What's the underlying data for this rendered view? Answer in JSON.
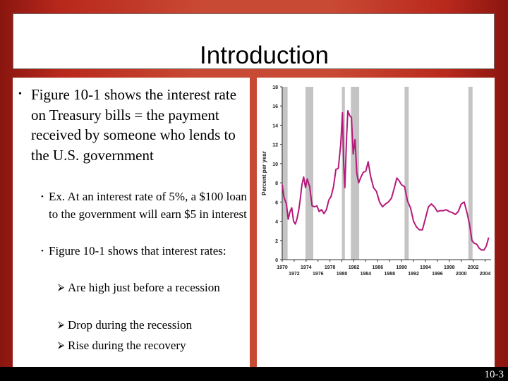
{
  "slide": {
    "title": "Introduction",
    "slide_number": "10-3"
  },
  "content": {
    "bullet_main": "Figure 10-1 shows the interest rate on Treasury bills = the payment received by someone who lends to the U.S. government",
    "sub_bullets": [
      "Ex. At an interest rate of 5%, a $100 loan to the government will earn $5 in interest",
      "Figure 10-1 shows that interest rates:"
    ],
    "arrow_bullets": [
      "Are high just before a recession",
      "Drop during the recession",
      "Rise during the recovery"
    ]
  },
  "chart_data": {
    "type": "line",
    "ylabel": "Percent per year",
    "xlabel": "",
    "ylim": [
      0,
      18
    ],
    "xlim": [
      1970,
      2005
    ],
    "y_ticks": [
      "0",
      "2",
      "4",
      "6",
      "8",
      "10",
      "12",
      "14",
      "16",
      "18"
    ],
    "x_ticks_upper": [
      "1970",
      "1974",
      "1978",
      "1982",
      "1986",
      "1990",
      "1994",
      "1998",
      "2002"
    ],
    "x_ticks_lower": [
      "1972",
      "1976",
      "1980",
      "1984",
      "1988",
      "1992",
      "1996",
      "2000",
      "2004"
    ],
    "line_color": "#b5197a",
    "recession_color": "#c4c4c4",
    "recessions": [
      [
        1969.9,
        1970.9
      ],
      [
        1973.9,
        1975.2
      ],
      [
        1980.0,
        1980.5
      ],
      [
        1981.5,
        1982.9
      ],
      [
        1990.5,
        1991.2
      ],
      [
        2001.2,
        2001.9
      ]
    ],
    "series": [
      {
        "x": [
          1970.0,
          1970.3,
          1970.7,
          1971.0,
          1971.3,
          1971.6,
          1971.9,
          1972.2,
          1972.5,
          1972.8,
          1973.0,
          1973.3,
          1973.6,
          1973.9,
          1974.2,
          1974.6,
          1975.0,
          1975.4,
          1975.8,
          1976.2,
          1976.6,
          1977.0,
          1977.4,
          1977.8,
          1978.2,
          1978.6,
          1979.0,
          1979.4,
          1979.8,
          1980.1,
          1980.3,
          1980.5,
          1980.8,
          1981.0,
          1981.3,
          1981.6,
          1981.9,
          1982.2,
          1982.5,
          1982.8,
          1983.2,
          1983.6,
          1984.0,
          1984.4,
          1984.8,
          1985.3,
          1985.8,
          1986.3,
          1986.8,
          1987.3,
          1987.8,
          1988.3,
          1988.8,
          1989.2,
          1989.6,
          1990.0,
          1990.5,
          1991.0,
          1991.5,
          1992.0,
          1992.5,
          1993.0,
          1993.5,
          1994.0,
          1994.5,
          1995.0,
          1995.5,
          1996.0,
          1996.5,
          1997.0,
          1997.5,
          1998.0,
          1998.5,
          1999.0,
          1999.5,
          2000.0,
          2000.5,
          2001.0,
          2001.4,
          2001.8,
          2002.2,
          2002.6,
          2003.0,
          2003.4,
          2003.8,
          2004.2,
          2004.6
        ],
        "y": [
          7.8,
          6.5,
          5.8,
          4.2,
          5.0,
          5.4,
          4.0,
          3.7,
          4.3,
          5.3,
          6.2,
          7.8,
          8.6,
          7.5,
          8.4,
          7.6,
          5.6,
          5.5,
          5.6,
          5.0,
          5.2,
          4.8,
          5.2,
          6.2,
          6.6,
          7.6,
          9.4,
          9.5,
          12.0,
          15.3,
          10.0,
          7.5,
          12.9,
          15.5,
          15.0,
          14.8,
          11.0,
          12.5,
          9.0,
          8.0,
          8.6,
          9.1,
          9.2,
          10.2,
          8.7,
          7.5,
          7.1,
          6.0,
          5.5,
          5.8,
          6.0,
          6.4,
          7.5,
          8.5,
          8.2,
          7.8,
          7.6,
          6.1,
          5.4,
          4.0,
          3.4,
          3.1,
          3.1,
          4.3,
          5.5,
          5.8,
          5.5,
          5.0,
          5.1,
          5.1,
          5.2,
          5.0,
          4.9,
          4.7,
          5.0,
          5.8,
          6.0,
          4.8,
          3.6,
          2.0,
          1.7,
          1.6,
          1.2,
          1.0,
          1.0,
          1.4,
          2.3
        ]
      }
    ]
  }
}
